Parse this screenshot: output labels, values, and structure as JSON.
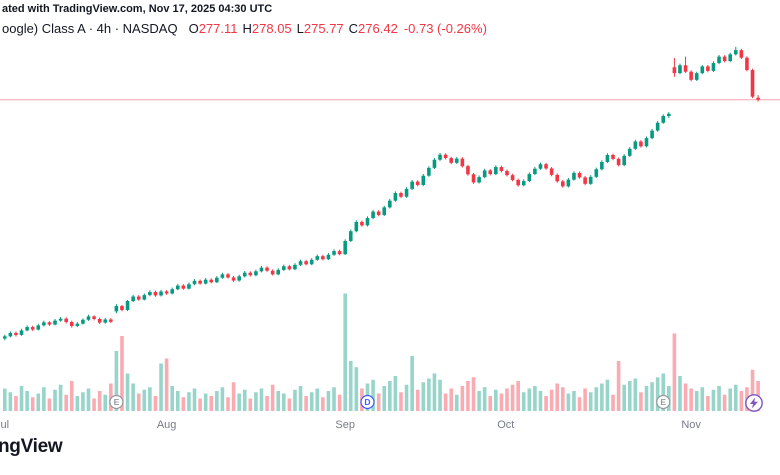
{
  "header": {
    "attribution": "ated with TradingView.com, Nov 17, 2025 04:30 UTC"
  },
  "legend": {
    "symbol": "oogle) Class A · 4h · NASDAQ",
    "ohlc": [
      {
        "label": "O",
        "value": "277.11"
      },
      {
        "label": "H",
        "value": "278.05"
      },
      {
        "label": "L",
        "value": "275.77"
      },
      {
        "label": "C",
        "value": "276.42"
      }
    ],
    "change": "-0.73 (-0.26%)"
  },
  "footer": {
    "logo_text": "ngView"
  },
  "colors": {
    "up": "#089981",
    "down": "#f23645",
    "text": "#131722",
    "muted": "#787b86",
    "price_line": "#f23645",
    "marker_e": "#9598a1",
    "marker_d": "#3d5afe",
    "bolt": "#7e57c2"
  },
  "chart_data": {
    "type": "candlestick",
    "interval": "4h",
    "exchange": "NASDAQ",
    "last": {
      "open": 277.11,
      "high": 278.05,
      "low": 275.77,
      "close": 276.42,
      "change": -0.73,
      "change_pct": -0.26
    },
    "price_line": 276.42,
    "ylim": [
      165,
      302
    ],
    "legend_position": "top-left",
    "grid": false,
    "x_axis_months": [
      {
        "label": "Jul",
        "index": 0
      },
      {
        "label": "Aug",
        "index": 29
      },
      {
        "label": "Sep",
        "index": 61
      },
      {
        "label": "Oct",
        "index": 90
      },
      {
        "label": "Nov",
        "index": 123
      }
    ],
    "markers": [
      {
        "label": "E",
        "index": 20,
        "kind": "earnings"
      },
      {
        "label": "D",
        "index": 65,
        "kind": "dividend"
      },
      {
        "label": "E",
        "index": 118,
        "kind": "earnings"
      }
    ],
    "candles_format": [
      "open",
      "high",
      "low",
      "close",
      "volume"
    ],
    "candles": [
      [
        191.2,
        192.6,
        190.6,
        192.0,
        18
      ],
      [
        192.0,
        193.8,
        191.6,
        193.2,
        15
      ],
      [
        193.2,
        193.7,
        191.9,
        192.5,
        12
      ],
      [
        192.5,
        194.7,
        192.2,
        194.1,
        20
      ],
      [
        194.1,
        195.9,
        193.8,
        195.3,
        16
      ],
      [
        195.3,
        195.8,
        193.9,
        194.4,
        11
      ],
      [
        194.4,
        196.5,
        194.1,
        195.9,
        14
      ],
      [
        195.9,
        197.6,
        195.5,
        197.0,
        19
      ],
      [
        197.0,
        197.4,
        195.7,
        196.2,
        10
      ],
      [
        196.2,
        198.2,
        195.9,
        197.6,
        17
      ],
      [
        197.6,
        198.9,
        197.2,
        198.3,
        21
      ],
      [
        198.3,
        198.8,
        196.6,
        197.1,
        13
      ],
      [
        197.1,
        197.6,
        195.1,
        195.7,
        24
      ],
      [
        195.7,
        197.1,
        195.3,
        196.5,
        12
      ],
      [
        196.5,
        198.4,
        196.2,
        197.9,
        15
      ],
      [
        197.9,
        199.7,
        197.5,
        199.1,
        18
      ],
      [
        199.1,
        199.5,
        197.7,
        198.2,
        10
      ],
      [
        198.2,
        198.7,
        196.4,
        196.9,
        16
      ],
      [
        196.9,
        198.6,
        196.5,
        198.0,
        13
      ],
      [
        198.0,
        198.5,
        196.7,
        197.2,
        22
      ],
      [
        200.9,
        203.5,
        200.2,
        202.8,
        48
      ],
      [
        202.8,
        203.2,
        200.9,
        201.4,
        60
      ],
      [
        201.4,
        205.0,
        201.0,
        204.6,
        30
      ],
      [
        204.6,
        206.8,
        204.2,
        206.2,
        22
      ],
      [
        206.2,
        206.7,
        204.7,
        205.1,
        14
      ],
      [
        205.1,
        207.3,
        204.8,
        206.7,
        17
      ],
      [
        206.7,
        208.4,
        206.3,
        207.8,
        19
      ],
      [
        207.8,
        208.3,
        206.1,
        206.6,
        12
      ],
      [
        206.6,
        208.6,
        206.2,
        208.0,
        38
      ],
      [
        208.0,
        208.5,
        206.8,
        207.3,
        42
      ],
      [
        207.3,
        209.4,
        206.9,
        208.8,
        20
      ],
      [
        208.8,
        210.7,
        208.4,
        210.1,
        16
      ],
      [
        210.1,
        210.6,
        208.6,
        209.0,
        11
      ],
      [
        209.0,
        211.2,
        208.7,
        210.6,
        15
      ],
      [
        210.6,
        212.4,
        210.2,
        211.8,
        18
      ],
      [
        211.8,
        212.3,
        210.4,
        210.8,
        10
      ],
      [
        210.8,
        212.8,
        210.5,
        212.2,
        14
      ],
      [
        212.2,
        212.7,
        210.9,
        211.3,
        12
      ],
      [
        211.3,
        213.5,
        211.0,
        212.9,
        16
      ],
      [
        212.9,
        214.7,
        212.5,
        214.1,
        19
      ],
      [
        214.1,
        214.6,
        212.6,
        213.0,
        11
      ],
      [
        213.0,
        213.5,
        211.4,
        211.9,
        23
      ],
      [
        211.9,
        214.0,
        211.5,
        213.4,
        14
      ],
      [
        213.4,
        215.3,
        213.0,
        214.7,
        17
      ],
      [
        214.7,
        215.2,
        213.3,
        213.8,
        10
      ],
      [
        213.8,
        215.8,
        213.4,
        215.2,
        15
      ],
      [
        215.2,
        217.1,
        214.8,
        216.5,
        18
      ],
      [
        216.5,
        217.0,
        215.0,
        215.4,
        12
      ],
      [
        215.4,
        215.9,
        213.7,
        214.1,
        21
      ],
      [
        214.1,
        216.3,
        213.8,
        215.7,
        16
      ],
      [
        215.7,
        217.6,
        215.3,
        217.0,
        14
      ],
      [
        217.0,
        217.5,
        215.5,
        215.9,
        10
      ],
      [
        215.9,
        218.1,
        215.6,
        217.5,
        17
      ],
      [
        217.5,
        219.4,
        217.1,
        218.8,
        20
      ],
      [
        218.8,
        219.3,
        217.3,
        217.7,
        12
      ],
      [
        217.7,
        219.9,
        217.4,
        219.3,
        15
      ],
      [
        219.3,
        221.2,
        218.9,
        220.6,
        18
      ],
      [
        220.6,
        221.1,
        219.1,
        219.5,
        11
      ],
      [
        219.5,
        221.7,
        219.2,
        221.1,
        16
      ],
      [
        221.1,
        223.0,
        220.7,
        222.4,
        19
      ],
      [
        222.4,
        222.9,
        220.9,
        221.3,
        13
      ],
      [
        221.3,
        226.6,
        221.0,
        226.0,
        94
      ],
      [
        226.0,
        230.1,
        225.6,
        229.5,
        40
      ],
      [
        229.5,
        233.4,
        229.1,
        232.8,
        35
      ],
      [
        232.8,
        233.3,
        231.1,
        231.6,
        18
      ],
      [
        231.6,
        234.8,
        231.2,
        234.2,
        22
      ],
      [
        234.2,
        237.1,
        233.8,
        236.5,
        25
      ],
      [
        236.5,
        237.0,
        234.8,
        235.3,
        14
      ],
      [
        235.3,
        238.6,
        234.9,
        238.0,
        20
      ],
      [
        238.0,
        241.0,
        237.6,
        240.4,
        24
      ],
      [
        240.4,
        243.7,
        240.0,
        243.1,
        28
      ],
      [
        243.1,
        243.6,
        241.3,
        241.8,
        15
      ],
      [
        241.8,
        245.2,
        241.4,
        244.6,
        21
      ],
      [
        244.6,
        247.8,
        244.2,
        247.2,
        44
      ],
      [
        247.2,
        247.7,
        245.5,
        246.0,
        17
      ],
      [
        246.0,
        249.9,
        245.6,
        249.3,
        23
      ],
      [
        249.3,
        252.7,
        248.9,
        252.1,
        26
      ],
      [
        252.1,
        255.6,
        251.7,
        255.0,
        30
      ],
      [
        255.0,
        257.4,
        254.6,
        256.8,
        25
      ],
      [
        256.8,
        257.3,
        255.1,
        255.6,
        14
      ],
      [
        255.6,
        256.1,
        253.4,
        253.9,
        18
      ],
      [
        253.9,
        256.0,
        253.5,
        255.4,
        13
      ],
      [
        255.4,
        255.9,
        252.2,
        252.7,
        20
      ],
      [
        252.7,
        253.2,
        249.3,
        249.8,
        24
      ],
      [
        249.8,
        250.3,
        246.4,
        246.9,
        27
      ],
      [
        246.9,
        249.4,
        246.5,
        248.8,
        16
      ],
      [
        248.8,
        251.8,
        248.4,
        251.2,
        19
      ],
      [
        251.2,
        251.7,
        249.4,
        249.9,
        12
      ],
      [
        249.9,
        253.0,
        249.5,
        252.4,
        17
      ],
      [
        252.4,
        252.9,
        250.5,
        251.0,
        14
      ],
      [
        251.0,
        251.5,
        249.0,
        249.5,
        18
      ],
      [
        249.5,
        250.0,
        247.3,
        247.8,
        21
      ],
      [
        247.8,
        248.3,
        245.4,
        245.9,
        24
      ],
      [
        245.9,
        248.0,
        245.5,
        247.4,
        15
      ],
      [
        247.4,
        250.5,
        247.0,
        249.9,
        18
      ],
      [
        249.9,
        252.4,
        249.5,
        251.8,
        20
      ],
      [
        251.8,
        254.0,
        251.4,
        253.4,
        16
      ],
      [
        253.4,
        253.9,
        251.4,
        251.9,
        12
      ],
      [
        251.9,
        252.4,
        249.1,
        249.6,
        17
      ],
      [
        249.6,
        250.1,
        246.8,
        247.3,
        22
      ],
      [
        247.3,
        247.8,
        245.0,
        245.5,
        19
      ],
      [
        245.5,
        248.5,
        245.1,
        247.9,
        14
      ],
      [
        247.9,
        250.9,
        247.5,
        250.3,
        16
      ],
      [
        250.3,
        250.8,
        248.2,
        248.7,
        11
      ],
      [
        248.7,
        249.2,
        245.9,
        246.4,
        18
      ],
      [
        246.4,
        249.5,
        246.0,
        248.9,
        15
      ],
      [
        248.9,
        252.2,
        248.5,
        251.6,
        19
      ],
      [
        251.6,
        254.8,
        251.2,
        254.2,
        22
      ],
      [
        254.2,
        257.3,
        253.8,
        256.7,
        25
      ],
      [
        256.7,
        257.2,
        254.8,
        255.3,
        13
      ],
      [
        255.3,
        255.8,
        252.6,
        253.1,
        40
      ],
      [
        253.1,
        257.0,
        252.7,
        256.4,
        21
      ],
      [
        256.4,
        259.5,
        256.0,
        258.9,
        24
      ],
      [
        258.9,
        262.1,
        258.5,
        261.5,
        26
      ],
      [
        261.5,
        262.0,
        259.3,
        259.8,
        15
      ],
      [
        259.8,
        263.3,
        259.4,
        262.7,
        20
      ],
      [
        262.7,
        266.0,
        262.3,
        265.4,
        23
      ],
      [
        265.4,
        268.8,
        265.0,
        268.2,
        27
      ],
      [
        268.2,
        271.2,
        267.8,
        270.6,
        30
      ],
      [
        270.6,
        272.0,
        269.9,
        271.4,
        20
      ],
      [
        288.0,
        291.3,
        284.6,
        285.9,
        62
      ],
      [
        285.9,
        289.3,
        285.5,
        288.7,
        28
      ],
      [
        288.7,
        291.8,
        285.9,
        286.4,
        22
      ],
      [
        286.4,
        286.9,
        283.0,
        283.5,
        18
      ],
      [
        283.5,
        286.4,
        283.1,
        285.9,
        16
      ],
      [
        285.9,
        288.8,
        285.5,
        288.3,
        19
      ],
      [
        288.3,
        288.8,
        286.2,
        286.7,
        12
      ],
      [
        286.7,
        290.1,
        286.3,
        289.5,
        17
      ],
      [
        289.5,
        292.4,
        289.1,
        291.8,
        20
      ],
      [
        291.8,
        292.3,
        289.7,
        290.2,
        13
      ],
      [
        290.2,
        293.2,
        289.8,
        292.6,
        18
      ],
      [
        292.6,
        295.3,
        292.2,
        294.1,
        21
      ],
      [
        294.1,
        294.6,
        290.9,
        291.4,
        16
      ],
      [
        291.4,
        291.9,
        286.5,
        287.0,
        19
      ],
      [
        287.0,
        287.5,
        277.0,
        277.5,
        33
      ],
      [
        277.11,
        278.05,
        275.77,
        276.42,
        24
      ]
    ]
  }
}
